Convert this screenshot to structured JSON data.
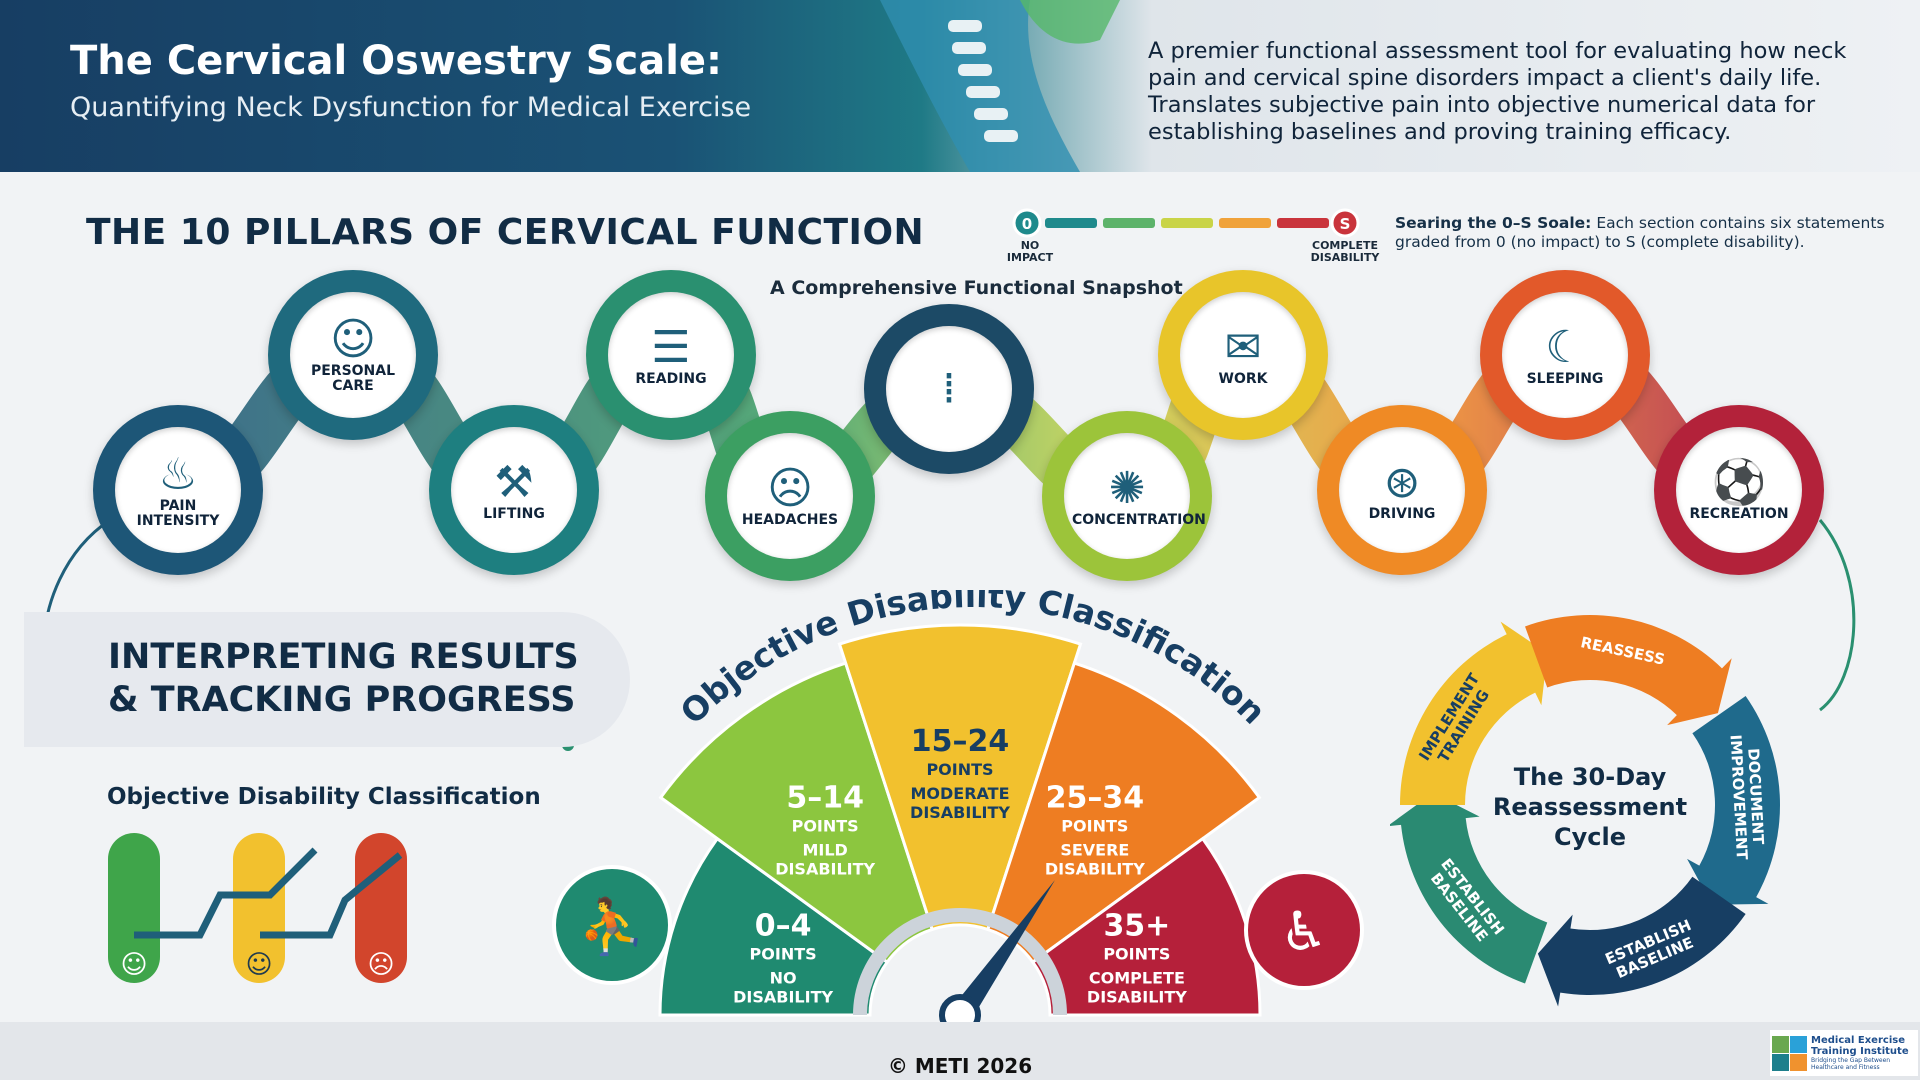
{
  "header": {
    "title": "The Cervical Oswestry Scale:",
    "subtitle": "Quantifying Neck Dysfunction for Medical Exercise",
    "intro": "A premier functional assessment tool for evaluating how neck pain and cervical spine disorders impact a client's daily life. Translates subjective pain into objective numerical data for establishing baselines and proving training efficacy."
  },
  "pillars": {
    "title": "THE 10 PILLARS OF CERVICAL FUNCTION",
    "snapshot": "A Comprehensive Functional Snapshot",
    "items": [
      {
        "label": "PAIN INTENSITY",
        "icon": "flame-icon",
        "glyph": "♨",
        "color": "#1d5677"
      },
      {
        "label": "PERSONAL CARE",
        "icon": "person-towel-icon",
        "glyph": "☺",
        "color": "#1f6a7e"
      },
      {
        "label": "LIFTING",
        "icon": "dumbbell-icon",
        "glyph": "⚒",
        "color": "#1e7f80"
      },
      {
        "label": "READING",
        "icon": "book-icon",
        "glyph": "☰",
        "color": "#2a9070"
      },
      {
        "label": "HEADACHES",
        "icon": "head-pulse-icon",
        "glyph": "☹",
        "color": "#3c9f62"
      },
      {
        "label": "",
        "icon": "cervical-spine-icon",
        "glyph": "⁞",
        "color": "#1c4a66"
      },
      {
        "label": "CONCENTRATION",
        "icon": "brain-gear-icon",
        "glyph": "✺",
        "color": "#9cc43a"
      },
      {
        "label": "WORK",
        "icon": "briefcase-desk-icon",
        "glyph": "✉",
        "color": "#e8c52a"
      },
      {
        "label": "DRIVING",
        "icon": "steering-wheel-icon",
        "glyph": "⊛",
        "color": "#ef8a25"
      },
      {
        "label": "SLEEPING",
        "icon": "cloud-moon-icon",
        "glyph": "☾",
        "color": "#e2592a"
      },
      {
        "label": "RECREATION",
        "icon": "soccer-ball-icon",
        "glyph": "⚽",
        "color": "#b3223a"
      }
    ]
  },
  "scale": {
    "min": "0",
    "max": "S",
    "min_label": "NO IMPACT",
    "max_label": "COMPLETE DISABILITY",
    "note_bold": "Searing the 0–S Soale:",
    "note": "Each section contains six statements graded from 0 (no impact) to S (complete disability).",
    "colors": [
      "#1f8a8c",
      "#5db36a",
      "#c9d447",
      "#f0a23a",
      "#c9343c"
    ]
  },
  "interpret": {
    "line1": "INTERPRETING RESULTS",
    "line2": "& TRACKING PROGRESS",
    "odc_title": "Objective Disability Classification"
  },
  "gauge": {
    "arc_title": "Objective Disability Classification",
    "segments": [
      {
        "range": "0–4",
        "unit": "POINTS",
        "label": "NO DISABILITY",
        "color": "#1f8a70"
      },
      {
        "range": "5–14",
        "unit": "POINTS",
        "label": "MILD DISABILITY",
        "color": "#8cc63f"
      },
      {
        "range": "15–24",
        "unit": "POINTS",
        "label": "MODERATE DISABILITY",
        "color": "#f2c12e"
      },
      {
        "range": "25–34",
        "unit": "POINTS",
        "label": "SEVERE DISABILITY",
        "color": "#ee7d22"
      },
      {
        "range": "35+",
        "unit": "POINTS",
        "label": "COMPLETE DISABILITY",
        "color": "#b5203a"
      }
    ]
  },
  "cycle": {
    "title": "The 30-Day Reassessment Cycle",
    "steps": [
      {
        "label": "ESTABLISH BASELINE",
        "color": "#2a8a72"
      },
      {
        "label": "IMPLEMENT TRAINING",
        "color": "#f2c12e"
      },
      {
        "label": "REASSESS",
        "color": "#ee7d22"
      },
      {
        "label": "DOCUMENT IMPROVEMENT",
        "color": "#1f6a8c"
      },
      {
        "label": "ESTABLISH BASELINE",
        "color": "#173e63"
      }
    ]
  },
  "footer": {
    "copyright": "© METI 2026",
    "logo_name": "Medical Exercise Training Institute",
    "logo_tagline": "Bridging the Gap Between Healthcare and Fitness"
  }
}
